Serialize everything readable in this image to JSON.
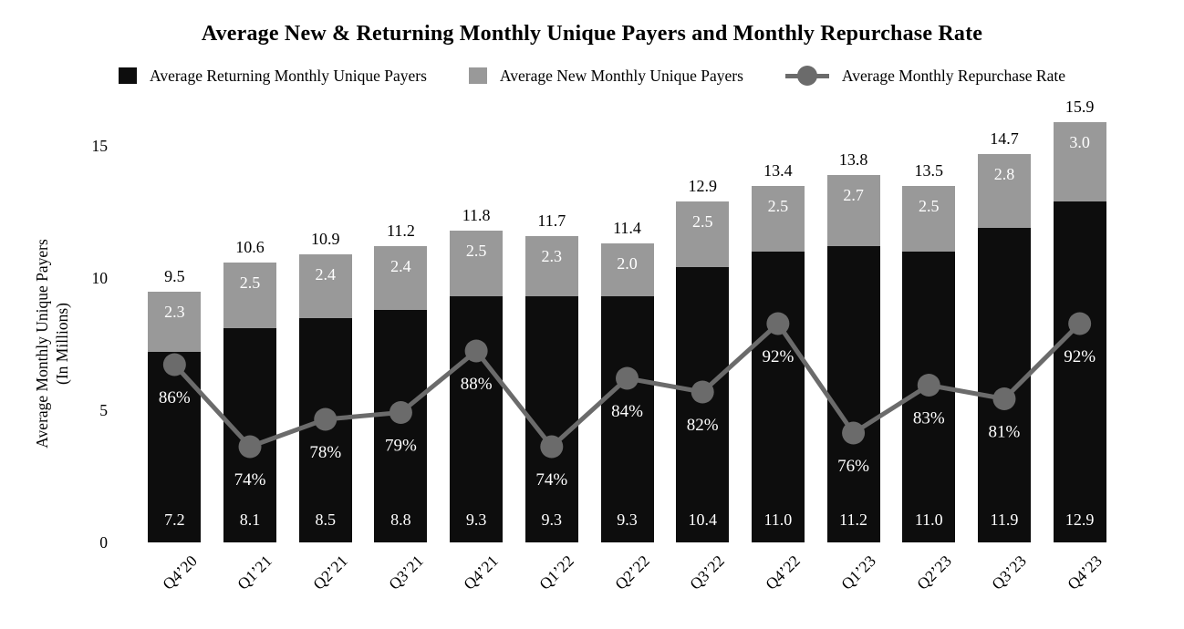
{
  "title": "Average New & Returning Monthly Unique Payers and Monthly Repurchase Rate",
  "legend": {
    "returning_label": "Average Returning Monthly Unique Payers",
    "new_label": "Average New Monthly Unique Payers",
    "rate_label": "Average Monthly Repurchase Rate"
  },
  "colors": {
    "returning_bar": "#0d0d0d",
    "new_bar": "#999999",
    "rate_line": "#6b6b6b",
    "bar_label_text": "#ffffff",
    "axis_text": "#000000"
  },
  "chart_data": {
    "type": "bar",
    "subtype": "stacked-bars-with-line-overlay",
    "title": "Average New & Returning Monthly Unique Payers and Monthly Repurchase Rate",
    "xlabel": "",
    "ylabel": "Average Monthly Unique Payers\n(In Millions)",
    "ylim": [
      0,
      15
    ],
    "yticks": [
      "0",
      "5",
      "10",
      "15"
    ],
    "grid": false,
    "legend_position": "top",
    "categories": [
      "Q4’20",
      "Q1’21",
      "Q2’21",
      "Q3’21",
      "Q4’21",
      "Q1’22",
      "Q2’22",
      "Q3’22",
      "Q4’22",
      "Q1’23",
      "Q2’23",
      "Q3’23",
      "Q4’23"
    ],
    "series": [
      {
        "name": "Average Returning Monthly Unique Payers",
        "type": "bar-stack-bottom",
        "color": "#0d0d0d",
        "values": [
          7.2,
          8.1,
          8.5,
          8.8,
          9.3,
          9.3,
          9.3,
          10.4,
          11.0,
          11.2,
          11.0,
          11.9,
          12.9
        ],
        "labels": [
          "7.2",
          "8.1",
          "8.5",
          "8.8",
          "9.3",
          "9.3",
          "9.3",
          "10.4",
          "11.0",
          "11.2",
          "11.0",
          "11.9",
          "12.9"
        ]
      },
      {
        "name": "Average New Monthly Unique Payers",
        "type": "bar-stack-top",
        "color": "#999999",
        "values": [
          2.3,
          2.5,
          2.4,
          2.4,
          2.5,
          2.3,
          2.0,
          2.5,
          2.5,
          2.7,
          2.5,
          2.8,
          3.0
        ],
        "labels": [
          "2.3",
          "2.5",
          "2.4",
          "2.4",
          "2.5",
          "2.3",
          "2.0",
          "2.5",
          "2.5",
          "2.7",
          "2.5",
          "2.8",
          "3.0"
        ]
      },
      {
        "name": "Average Monthly Repurchase Rate",
        "type": "line",
        "color": "#6b6b6b",
        "values": [
          86,
          74,
          78,
          79,
          88,
          74,
          84,
          82,
          92,
          76,
          83,
          81,
          92
        ],
        "labels": [
          "86%",
          "74%",
          "78%",
          "79%",
          "88%",
          "74%",
          "84%",
          "82%",
          "92%",
          "76%",
          "83%",
          "81%",
          "92%"
        ]
      }
    ],
    "totals": [
      "9.5",
      "10.6",
      "10.9",
      "11.2",
      "11.8",
      "11.7",
      "11.4",
      "12.9",
      "13.4",
      "13.8",
      "13.5",
      "14.7",
      "15.9"
    ]
  }
}
